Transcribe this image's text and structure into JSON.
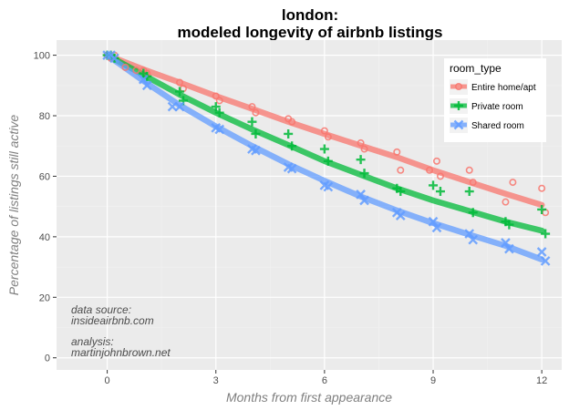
{
  "chart_data": {
    "type": "scatter",
    "title_lines": [
      "london:",
      "modeled longevity of airbnb listings"
    ],
    "xlabel": "Months from first appearance",
    "ylabel": "Percentage of listings still active",
    "xlim": [
      -1.4,
      12.55
    ],
    "ylim": [
      -4,
      105
    ],
    "x_ticks": [
      0,
      3,
      6,
      9,
      12
    ],
    "y_ticks": [
      0,
      20,
      40,
      60,
      80,
      100
    ],
    "grid": true,
    "legend": {
      "title": "room_type",
      "position": "top-right",
      "entries": [
        "Entire home/apt",
        "Private room",
        "Shared room"
      ]
    },
    "annotations": [
      "data source:",
      "insideairbnb.com",
      "analysis:",
      "martinjohnbrown.net"
    ],
    "series": [
      {
        "name": "Entire home/apt",
        "color": "#F8766D",
        "marker": "circle",
        "fit": [
          [
            0,
            100
          ],
          [
            1,
            95.3
          ],
          [
            2,
            91
          ],
          [
            3,
            86.5
          ],
          [
            4,
            82.3
          ],
          [
            5,
            78
          ],
          [
            6,
            74
          ],
          [
            7,
            70.1
          ],
          [
            8,
            66.3
          ],
          [
            9,
            62
          ],
          [
            10,
            58.1
          ],
          [
            11,
            54.2
          ],
          [
            12,
            50.5
          ]
        ],
        "points": [
          [
            0,
            100
          ],
          [
            0.1,
            99
          ],
          [
            0.2,
            100
          ],
          [
            0.5,
            96
          ],
          [
            0.8,
            95
          ],
          [
            1,
            95
          ],
          [
            1.1,
            94
          ],
          [
            2,
            91
          ],
          [
            2.1,
            89
          ],
          [
            3,
            86.5
          ],
          [
            3.1,
            85
          ],
          [
            4,
            83
          ],
          [
            4.1,
            81
          ],
          [
            5,
            79
          ],
          [
            5.1,
            78
          ],
          [
            6,
            75
          ],
          [
            6.1,
            73
          ],
          [
            7,
            71
          ],
          [
            7.1,
            69
          ],
          [
            8,
            68
          ],
          [
            8.1,
            62
          ],
          [
            8.9,
            62
          ],
          [
            9.1,
            65
          ],
          [
            9.2,
            60
          ],
          [
            10,
            62
          ],
          [
            10.1,
            58
          ],
          [
            11,
            51.5
          ],
          [
            11.2,
            58
          ],
          [
            12,
            56
          ],
          [
            12.1,
            48
          ]
        ]
      },
      {
        "name": "Private room",
        "color": "#00BA38",
        "marker": "plus",
        "fit": [
          [
            0,
            100
          ],
          [
            1,
            93.5
          ],
          [
            2,
            87
          ],
          [
            3,
            81
          ],
          [
            4,
            75.5
          ],
          [
            5,
            70.3
          ],
          [
            6,
            65
          ],
          [
            7,
            60.5
          ],
          [
            8,
            56
          ],
          [
            9,
            52
          ],
          [
            10,
            48.5
          ],
          [
            11,
            45
          ],
          [
            12,
            42
          ]
        ],
        "points": [
          [
            0,
            100
          ],
          [
            0.1,
            100
          ],
          [
            0.2,
            99
          ],
          [
            1,
            94
          ],
          [
            1.1,
            93
          ],
          [
            2,
            88
          ],
          [
            2.1,
            85
          ],
          [
            3,
            83
          ],
          [
            3.1,
            81
          ],
          [
            4,
            78
          ],
          [
            4.1,
            74
          ],
          [
            5,
            74
          ],
          [
            5.1,
            70
          ],
          [
            6,
            69
          ],
          [
            6.1,
            65
          ],
          [
            7,
            65.5
          ],
          [
            7.1,
            61
          ],
          [
            8,
            56
          ],
          [
            8.1,
            55
          ],
          [
            9,
            57
          ],
          [
            9.2,
            55
          ],
          [
            10,
            55
          ],
          [
            10.1,
            48
          ],
          [
            11,
            45
          ],
          [
            11.1,
            44
          ],
          [
            12,
            49
          ],
          [
            12.1,
            41
          ]
        ]
      },
      {
        "name": "Shared room",
        "color": "#619CFF",
        "marker": "x",
        "fit": [
          [
            0,
            100
          ],
          [
            1,
            91.5
          ],
          [
            2,
            83.5
          ],
          [
            3,
            76.5
          ],
          [
            4,
            70
          ],
          [
            5,
            64
          ],
          [
            6,
            58.5
          ],
          [
            7,
            53.3
          ],
          [
            8,
            48.7
          ],
          [
            9,
            44.5
          ],
          [
            10,
            40.7
          ],
          [
            11,
            37
          ],
          [
            12,
            32.5
          ]
        ],
        "points": [
          [
            0,
            100
          ],
          [
            0.1,
            100
          ],
          [
            0.2,
            99
          ],
          [
            1,
            92
          ],
          [
            1.1,
            90
          ],
          [
            1.8,
            83
          ],
          [
            2,
            83
          ],
          [
            3,
            76
          ],
          [
            3.1,
            75.5
          ],
          [
            4,
            69
          ],
          [
            4.1,
            68.5
          ],
          [
            5,
            63
          ],
          [
            5.1,
            62.5
          ],
          [
            6,
            57
          ],
          [
            6.1,
            56.5
          ],
          [
            7,
            54
          ],
          [
            7.1,
            52
          ],
          [
            8,
            48
          ],
          [
            8.1,
            47
          ],
          [
            9,
            45
          ],
          [
            9.1,
            43
          ],
          [
            10,
            41
          ],
          [
            10.1,
            39
          ],
          [
            11,
            38
          ],
          [
            11.1,
            36
          ],
          [
            12,
            35
          ],
          [
            12.1,
            32
          ]
        ]
      }
    ]
  }
}
